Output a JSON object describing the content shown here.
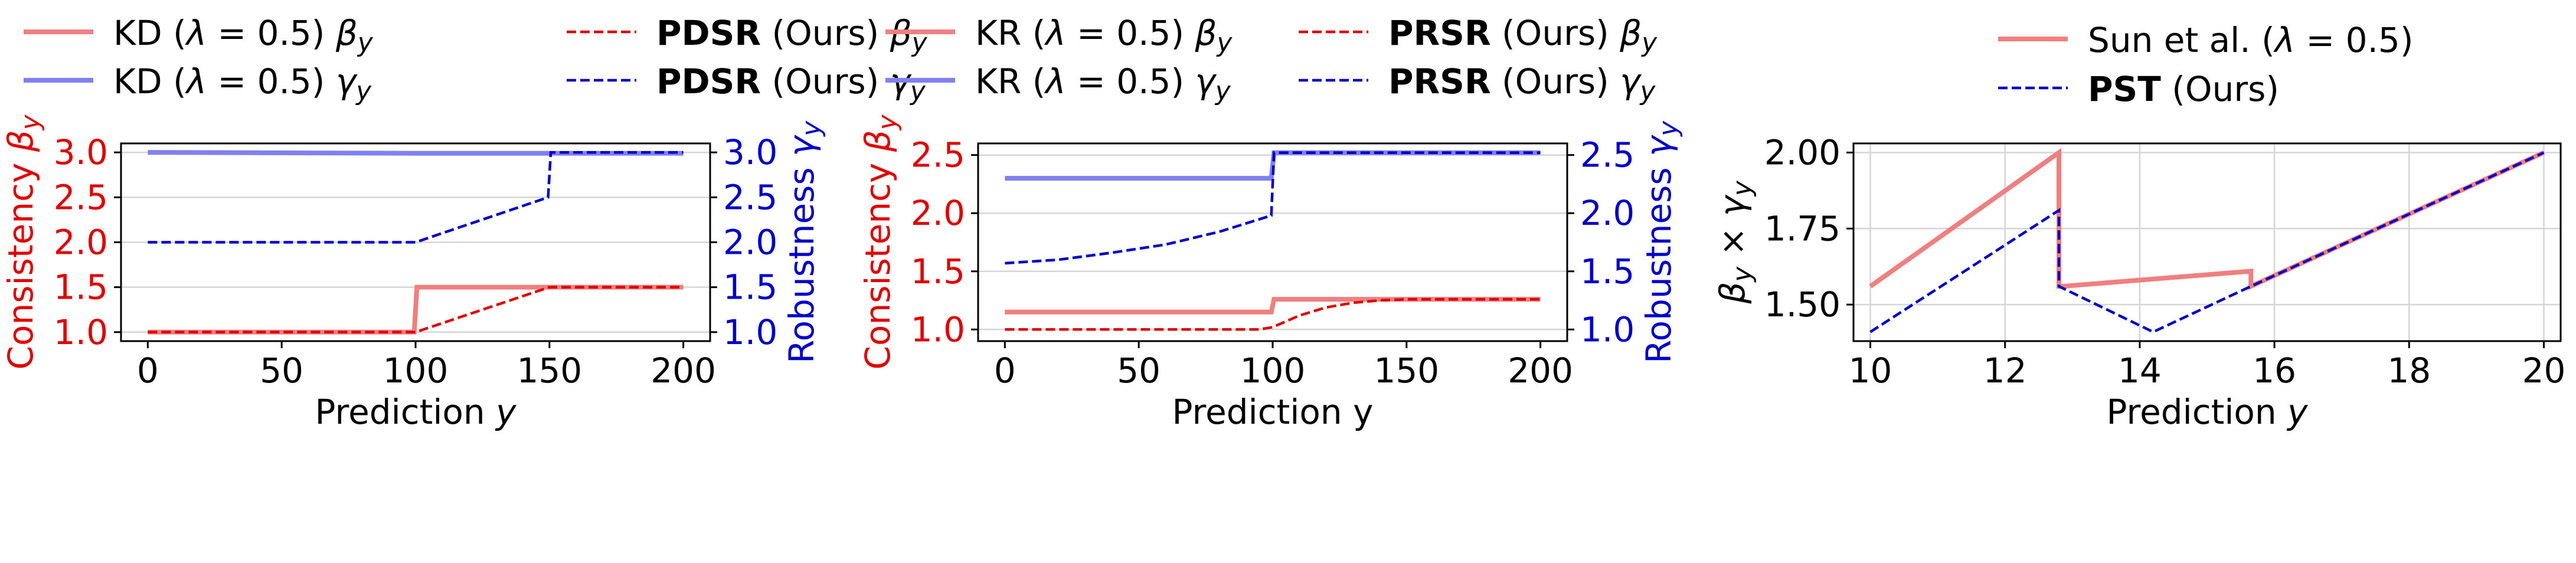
{
  "chart_data": [
    {
      "type": "line",
      "legend": {
        "placement": "above",
        "entries": [
          {
            "series": 0,
            "parts": [
              {
                "t": "KD (",
                "b": false
              },
              {
                "t": "λ",
                "b": false,
                "i": true
              },
              {
                "t": " = 0.5) ",
                "b": false
              },
              {
                "t": "β",
                "b": false,
                "i": true
              },
              {
                "t": "y",
                "b": false,
                "i": true,
                "sub": true
              }
            ]
          },
          {
            "series": 1,
            "parts": [
              {
                "t": "KD (",
                "b": false
              },
              {
                "t": "λ",
                "b": false,
                "i": true
              },
              {
                "t": " = 0.5) ",
                "b": false
              },
              {
                "t": "γ",
                "b": false,
                "i": true
              },
              {
                "t": "y",
                "b": false,
                "i": true,
                "sub": true
              }
            ]
          },
          {
            "series": 2,
            "parts": [
              {
                "t": "PDSR",
                "b": true
              },
              {
                "t": " (Ours) ",
                "b": false
              },
              {
                "t": "β",
                "b": false,
                "i": true
              },
              {
                "t": "y",
                "b": false,
                "i": true,
                "sub": true
              }
            ]
          },
          {
            "series": 3,
            "parts": [
              {
                "t": "PDSR",
                "b": true
              },
              {
                "t": " (Ours) ",
                "b": false
              },
              {
                "t": "γ",
                "b": false,
                "i": true
              },
              {
                "t": "y",
                "b": false,
                "i": true,
                "sub": true
              }
            ]
          }
        ]
      },
      "xlabel": "Prediction y",
      "xlabel_italic_y": true,
      "ylabel_left": "Consistency β",
      "ylabel_left_sub": "y",
      "ylabel_right": "Robustness γ",
      "ylabel_right_sub": "y",
      "xlim": [
        -10,
        210
      ],
      "ylim_left": [
        0.9,
        3.1
      ],
      "ylim_right": [
        0.9,
        3.1
      ],
      "xticks": [
        0,
        50,
        100,
        150,
        200
      ],
      "yticks_left": [
        1.0,
        1.5,
        2.0,
        2.5,
        3.0
      ],
      "yticks_right": [
        1.0,
        1.5,
        2.0,
        2.5,
        3.0
      ],
      "grid": "horizontal",
      "series": [
        {
          "color": "#f08080",
          "style": "solid",
          "axis": "left",
          "x": [
            0,
            99.5,
            100.5,
            200
          ],
          "y": [
            1.0,
            1.0,
            1.5,
            1.5
          ]
        },
        {
          "color": "#8080f0",
          "style": "solid",
          "axis": "right",
          "x": [
            0,
            100,
            200
          ],
          "y": [
            3.0,
            2.99,
            2.99
          ]
        },
        {
          "color": "#e00000",
          "style": "dashed",
          "axis": "left",
          "x": [
            0,
            100,
            150,
            200
          ],
          "y": [
            1.0,
            1.0,
            1.5,
            1.5
          ]
        },
        {
          "color": "#0000c8",
          "style": "dashed",
          "axis": "right",
          "x": [
            0,
            100,
            149.5,
            150.5,
            200
          ],
          "y": [
            2.0,
            2.0,
            2.5,
            3.0,
            3.0
          ]
        }
      ]
    },
    {
      "type": "line",
      "legend": {
        "placement": "above",
        "entries": [
          {
            "series": 0,
            "parts": [
              {
                "t": "KR (",
                "b": false
              },
              {
                "t": "λ",
                "b": false,
                "i": true
              },
              {
                "t": " = 0.5) ",
                "b": false
              },
              {
                "t": "β",
                "b": false,
                "i": true
              },
              {
                "t": "y",
                "b": false,
                "i": true,
                "sub": true
              }
            ]
          },
          {
            "series": 1,
            "parts": [
              {
                "t": "KR (",
                "b": false
              },
              {
                "t": "λ",
                "b": false,
                "i": true
              },
              {
                "t": " = 0.5) ",
                "b": false
              },
              {
                "t": "γ",
                "b": false,
                "i": true
              },
              {
                "t": "y",
                "b": false,
                "i": true,
                "sub": true
              }
            ]
          },
          {
            "series": 2,
            "parts": [
              {
                "t": "PRSR",
                "b": true
              },
              {
                "t": " (Ours) ",
                "b": false
              },
              {
                "t": "β",
                "b": false,
                "i": true
              },
              {
                "t": "y",
                "b": false,
                "i": true,
                "sub": true
              }
            ]
          },
          {
            "series": 3,
            "parts": [
              {
                "t": "PRSR",
                "b": true
              },
              {
                "t": " (Ours) ",
                "b": false
              },
              {
                "t": "γ",
                "b": false,
                "i": true
              },
              {
                "t": "y",
                "b": false,
                "i": true,
                "sub": true
              }
            ]
          }
        ]
      },
      "xlabel": "Prediction y",
      "xlabel_italic_y": false,
      "ylabel_left": "Consistency β",
      "ylabel_left_sub": "y",
      "ylabel_right": "Robustness γ",
      "ylabel_right_sub": "y",
      "xlim": [
        -10,
        210
      ],
      "ylim_left": [
        0.9,
        2.6
      ],
      "ylim_right": [
        0.9,
        2.6
      ],
      "xticks": [
        0,
        50,
        100,
        150,
        200
      ],
      "yticks_left": [
        1.0,
        1.5,
        2.0,
        2.5
      ],
      "yticks_right": [
        1.0,
        1.5,
        2.0,
        2.5
      ],
      "grid": "horizontal",
      "series": [
        {
          "color": "#f08080",
          "style": "solid",
          "axis": "left",
          "x": [
            0,
            99.5,
            100.5,
            200
          ],
          "y": [
            1.15,
            1.15,
            1.26,
            1.26
          ]
        },
        {
          "color": "#8080f0",
          "style": "solid",
          "axis": "right",
          "x": [
            0,
            99.5,
            100.5,
            200
          ],
          "y": [
            2.3,
            2.3,
            2.52,
            2.52
          ]
        },
        {
          "color": "#e00000",
          "style": "dashed",
          "axis": "left",
          "x": [
            0,
            95,
            100,
            110,
            120,
            130,
            140,
            150,
            200
          ],
          "y": [
            1.0,
            1.0,
            1.02,
            1.12,
            1.19,
            1.23,
            1.25,
            1.26,
            1.26
          ]
        },
        {
          "color": "#0000c8",
          "style": "dashed",
          "axis": "right",
          "x": [
            0,
            20,
            40,
            60,
            80,
            99.5,
            100.5,
            200
          ],
          "y": [
            1.57,
            1.6,
            1.66,
            1.73,
            1.84,
            1.98,
            2.52,
            2.52
          ]
        }
      ]
    },
    {
      "type": "line",
      "legend": {
        "placement": "above",
        "entries": [
          {
            "series": 0,
            "parts": [
              {
                "t": "Sun et al. (",
                "b": false
              },
              {
                "t": "λ",
                "b": false,
                "i": true
              },
              {
                "t": " = 0.5)",
                "b": false
              }
            ]
          },
          {
            "series": 1,
            "parts": [
              {
                "t": "PST",
                "b": true
              },
              {
                "t": " (Ours)",
                "b": false
              }
            ]
          }
        ]
      },
      "xlabel": "Prediction y",
      "xlabel_italic_y": true,
      "ylabel_left": "β",
      "ylabel_left_sub": "y",
      "ylabel_left_full": [
        {
          "t": "β",
          "i": true
        },
        {
          "t": "y",
          "i": true,
          "sub": true
        },
        {
          "t": " × ",
          "i": false
        },
        {
          "t": "γ",
          "i": true
        },
        {
          "t": "y",
          "i": true,
          "sub": true
        }
      ],
      "xlim": [
        9.75,
        20.25
      ],
      "ylim_left": [
        1.38,
        2.03
      ],
      "xticks": [
        10,
        12,
        14,
        16,
        18,
        20
      ],
      "yticks_left": [
        1.5,
        1.75,
        2.0
      ],
      "ytick_labels_left": [
        "1.50",
        "1.75",
        "2.00"
      ],
      "grid": "both",
      "series": [
        {
          "color": "#f08080",
          "style": "solid",
          "axis": "left",
          "x": [
            10,
            12.8,
            12.8,
            12.85,
            15.65,
            15.65,
            20
          ],
          "y": [
            1.56,
            2.0,
            1.56,
            1.56,
            1.61,
            1.56,
            2.0
          ]
        },
        {
          "color": "#0000c8",
          "style": "dashed",
          "axis": "left",
          "x": [
            10,
            12.8,
            12.8,
            14.2,
            15.65,
            20
          ],
          "y": [
            1.41,
            1.81,
            1.56,
            1.41,
            1.56,
            2.0
          ]
        }
      ]
    }
  ]
}
